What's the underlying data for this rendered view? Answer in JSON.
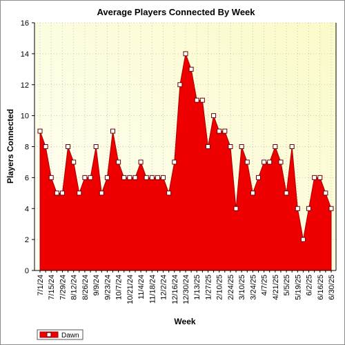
{
  "chart_data": {
    "type": "area",
    "title": "Average Players Connected By Week",
    "xlabel": "Week",
    "ylabel": "Players Connected",
    "ylim": [
      0,
      16
    ],
    "yticks": [
      0,
      2,
      4,
      6,
      8,
      10,
      12,
      14,
      16
    ],
    "grid": true,
    "legend_position": "bottom-left",
    "x": [
      "7/1/24",
      "7/8/24",
      "7/15/24",
      "7/22/24",
      "7/29/24",
      "8/5/24",
      "8/12/24",
      "8/19/24",
      "8/26/24",
      "9/2/24",
      "9/9/24",
      "9/16/24",
      "9/23/24",
      "9/30/24",
      "10/7/24",
      "10/14/24",
      "10/21/24",
      "10/28/24",
      "11/4/24",
      "11/11/24",
      "11/18/24",
      "11/25/24",
      "12/2/24",
      "12/9/24",
      "12/16/24",
      "12/23/24",
      "12/30/24",
      "1/6/25",
      "1/13/25",
      "1/20/25",
      "1/27/25",
      "2/3/25",
      "2/10/25",
      "2/17/25",
      "2/24/25",
      "3/3/25",
      "3/10/25",
      "3/17/25",
      "3/24/25",
      "3/31/25",
      "4/7/25",
      "4/14/25",
      "4/21/25",
      "4/28/25",
      "5/5/25",
      "5/12/25",
      "5/19/25",
      "5/26/25",
      "6/2/25",
      "6/9/25",
      "6/16/25",
      "6/23/25",
      "6/30/25"
    ],
    "x_tick_labels": [
      "7/1/24",
      "7/15/24",
      "7/29/24",
      "8/12/24",
      "8/26/24",
      "9/9/24",
      "9/23/24",
      "10/7/24",
      "10/21/24",
      "11/4/24",
      "11/18/24",
      "12/2/24",
      "12/16/24",
      "12/30/24",
      "1/13/25",
      "1/27/25",
      "2/10/25",
      "2/24/25",
      "3/10/25",
      "3/24/25",
      "4/7/25",
      "4/21/25",
      "5/5/25",
      "5/19/25",
      "6/2/25",
      "6/16/25",
      "6/30/25"
    ],
    "series": [
      {
        "name": "Dawn",
        "color": "#ee0000",
        "values": [
          9,
          8,
          6,
          5,
          5,
          8,
          7,
          5,
          6,
          6,
          8,
          5,
          6,
          9,
          7,
          6,
          6,
          6,
          7,
          6,
          6,
          6,
          6,
          5,
          7,
          12,
          14,
          13,
          11,
          11,
          8,
          10,
          9,
          9,
          8,
          4,
          8,
          7,
          5,
          6,
          7,
          7,
          8,
          7,
          5,
          8,
          4,
          2,
          4,
          6,
          6,
          5,
          4
        ]
      }
    ]
  },
  "colors": {
    "plot_bg_light": "#fffff8",
    "plot_bg_dark": "#fafacc",
    "area_fill": "#ee0000",
    "area_edge": "#aa0000",
    "grid": "#c8c8b4"
  }
}
